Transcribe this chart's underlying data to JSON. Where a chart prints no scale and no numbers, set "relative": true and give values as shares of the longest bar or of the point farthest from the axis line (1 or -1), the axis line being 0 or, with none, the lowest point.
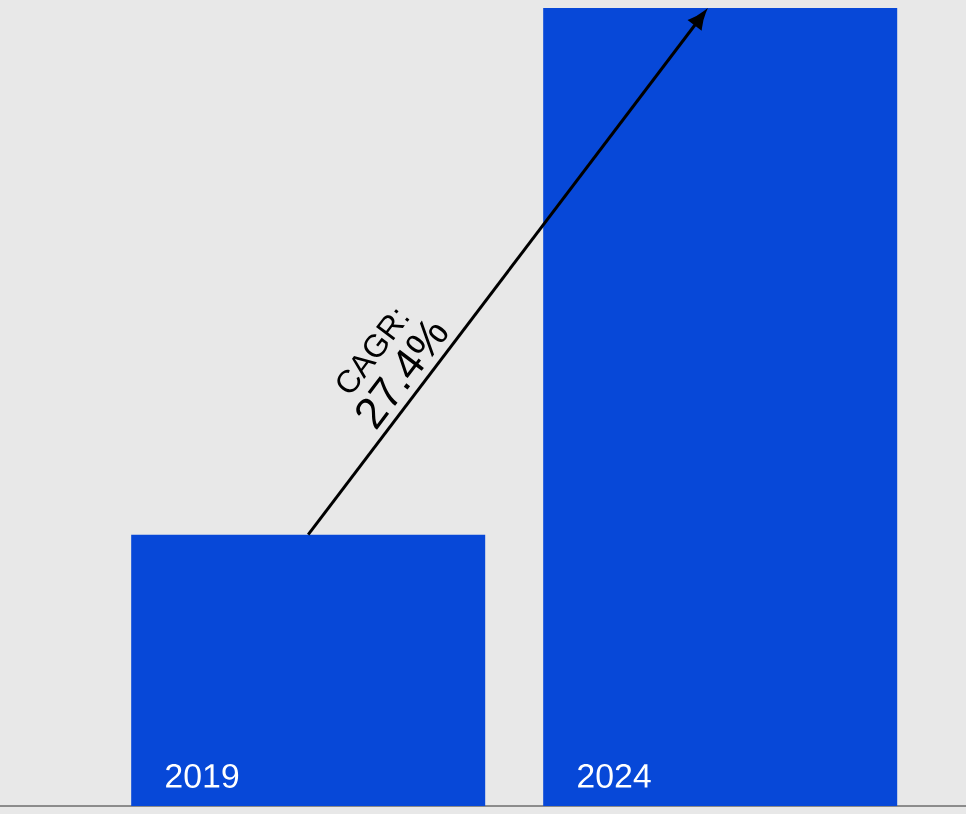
{
  "chart_data": {
    "type": "bar",
    "categories": [
      "2019",
      "2024"
    ],
    "values": [
      0.34,
      1
    ],
    "color": "#0748d8",
    "relative": true,
    "annotations": [
      "CAGR:",
      "27.4%"
    ]
  }
}
